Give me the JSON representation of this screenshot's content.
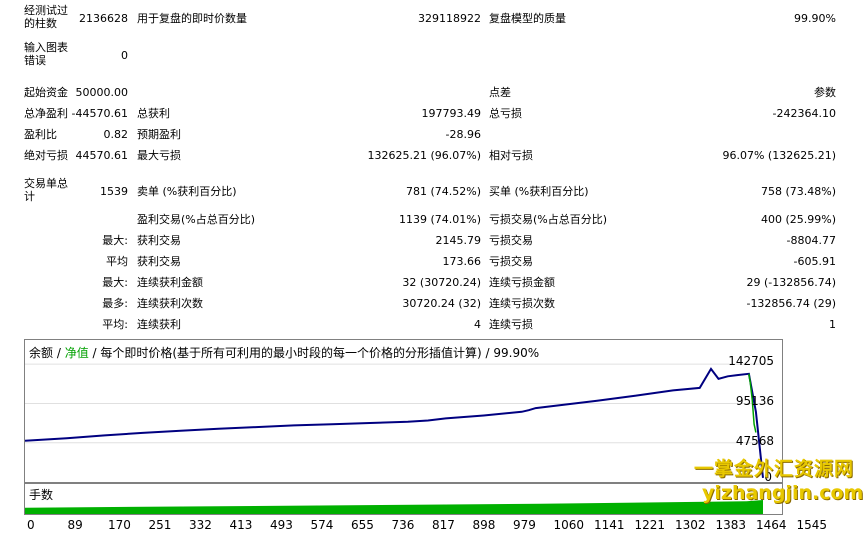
{
  "stats": {
    "bars_label": "经测试过\n的柱数",
    "bars_value": "2136628",
    "ticks_label": "用于复盘的即时价数量",
    "ticks_value": "329118922",
    "quality_label": "复盘模型的质量",
    "quality_value": "99.90%",
    "errors_label": "输入图表\n错误",
    "errors_value": "0",
    "deposit_label": "起始资金",
    "deposit_value": "50000.00",
    "spread_label": "点差",
    "spread_value": "参数",
    "net_profit_label": "总净盈利",
    "net_profit_value": "-44570.61",
    "gross_profit_label": "总获利",
    "gross_profit_value": "197793.49",
    "gross_loss_label": "总亏损",
    "gross_loss_value": "-242364.10",
    "profit_factor_label": "盈利比",
    "profit_factor_value": "0.82",
    "expected_payoff_label": "预期盈利",
    "expected_payoff_value": "-28.96",
    "abs_dd_label": "绝对亏损",
    "abs_dd_value": "44570.61",
    "max_dd_label": "最大亏损",
    "max_dd_value": "132625.21 (96.07%)",
    "rel_dd_label": "相对亏损",
    "rel_dd_value": "96.07% (132625.21)",
    "total_trades_label": "交易单总\n计",
    "total_trades_value": "1539",
    "short_label": "卖单 (%获利百分比)",
    "short_value": "781 (74.52%)",
    "long_label": "买单 (%获利百分比)",
    "long_value": "758 (73.48%)",
    "profit_trades_label": "盈利交易(%占总百分比)",
    "profit_trades_value": "1139 (74.01%)",
    "loss_trades_label": "亏损交易(%占总百分比)",
    "loss_trades_value": "400 (25.99%)",
    "largest_prefix": "最大:",
    "largest_profit_label": "获利交易",
    "largest_profit_value": "2145.79",
    "largest_loss_label": "亏损交易",
    "largest_loss_value": "-8804.77",
    "average_prefix": "平均",
    "avg_profit_label": "获利交易",
    "avg_profit_value": "173.66",
    "avg_loss_label": "亏损交易",
    "avg_loss_value": "-605.91",
    "max_prefix": "最大:",
    "max_consec_wins_label": "连续获利金额",
    "max_consec_wins_value": "32 (30720.24)",
    "max_consec_losses_label": "连续亏损金额",
    "max_consec_losses_value": "29 (-132856.74)",
    "most_prefix": "最多:",
    "max_consec_profit_label": "连续获利次数",
    "max_consec_profit_value": "30720.24 (32)",
    "max_consec_loss_label": "连续亏损次数",
    "max_consec_loss_value": "-132856.74 (29)",
    "avg2_prefix": "平均:",
    "avg_consec_wins_label": "连续获利",
    "avg_consec_wins_value": "4",
    "avg_consec_losses_label": "连续亏损",
    "avg_consec_losses_value": "1"
  },
  "chart": {
    "title_balance": "余额",
    "sep1": " / ",
    "title_equity": "净值",
    "title_rest": " / 每个即时价格(基于所有可利用的最小时段的每一个价格的分形插值计算) / 99.90%",
    "volume_label": "手数",
    "colors": {
      "balance": "#000080",
      "equity": "#00a000",
      "volume": "#00b000"
    }
  },
  "chart_data": {
    "type": "line",
    "y_ticks": [
      "142705",
      "95136",
      "47568",
      "0"
    ],
    "x_ticks": [
      "0",
      "89",
      "170",
      "251",
      "332",
      "413",
      "493",
      "574",
      "655",
      "736",
      "817",
      "898",
      "979",
      "1060",
      "1141",
      "1221",
      "1302",
      "1383",
      "1464",
      "1545"
    ],
    "xlim": [
      0,
      1590
    ],
    "ylim": [
      0,
      172000
    ],
    "series": [
      {
        "name": "余额",
        "x": [
          0,
          89,
          170,
          251,
          332,
          413,
          493,
          574,
          655,
          736,
          817,
          860,
          898,
          979,
          1060,
          1075,
          1090,
          1141,
          1221,
          1302,
          1383,
          1440,
          1464,
          1480,
          1500,
          1520,
          1545,
          1560,
          1575
        ],
        "y": [
          50000,
          53000,
          56500,
          59500,
          62000,
          64500,
          66500,
          68500,
          70000,
          71500,
          73000,
          74500,
          77000,
          80500,
          85000,
          87000,
          89500,
          93000,
          98500,
          104500,
          111000,
          114000,
          137000,
          125000,
          128000,
          129500,
          131000,
          85000,
          5000
        ]
      },
      {
        "name": "净值",
        "x": [
          1545,
          1548,
          1552,
          1556,
          1560
        ],
        "y": [
          131000,
          120000,
          100000,
          70000,
          60000
        ]
      }
    ],
    "volume": {
      "x": [
        0,
        1100,
        1540,
        1575
      ],
      "y": [
        1,
        1.6,
        2.0,
        2.2
      ]
    }
  },
  "watermark": {
    "line1": "一掌金外汇资源网",
    "line2": "yizhangjin.com"
  }
}
